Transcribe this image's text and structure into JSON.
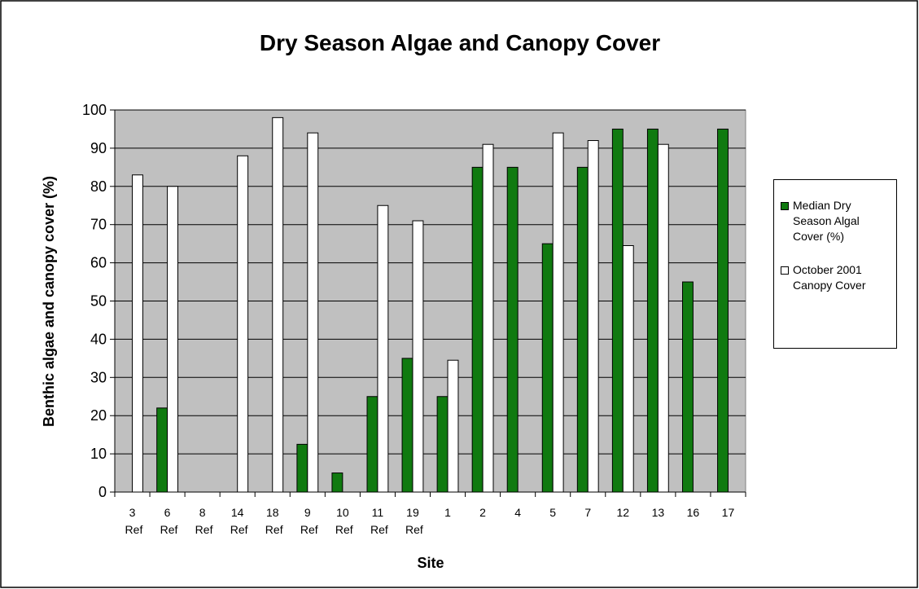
{
  "chart_data": {
    "type": "bar",
    "title": "Dry Season Algae and Canopy Cover",
    "x_label": "Site",
    "y_label": "Benthic algae and canopy cover (%)",
    "categories": [
      "3 Ref",
      "6 Ref",
      "8 Ref",
      "14 Ref",
      "18 Ref",
      "9 Ref",
      "10 Ref",
      "11 Ref",
      "19 Ref",
      "1",
      "2",
      "4",
      "5",
      "7",
      "12",
      "13",
      "16",
      "17"
    ],
    "series": [
      {
        "name": "Median Dry Season Algal Cover (%)",
        "color": "#107a10",
        "values": [
          null,
          22,
          null,
          null,
          null,
          12.5,
          5,
          25,
          35,
          25,
          85,
          85,
          65,
          85,
          95,
          95,
          55,
          95
        ]
      },
      {
        "name": "October 2001 Canopy Cover",
        "color": "#ffffff",
        "values": [
          83,
          80,
          null,
          88,
          98,
          94,
          null,
          75,
          71,
          34.5,
          91,
          null,
          94,
          92,
          64.5,
          91,
          null,
          null
        ]
      }
    ],
    "ylim": [
      0,
      100
    ],
    "yticks": [
      0,
      10,
      20,
      30,
      40,
      50,
      60,
      70,
      80,
      90,
      100
    ],
    "grid": true,
    "legend": "right",
    "plot_background": "#c0c0c0"
  }
}
